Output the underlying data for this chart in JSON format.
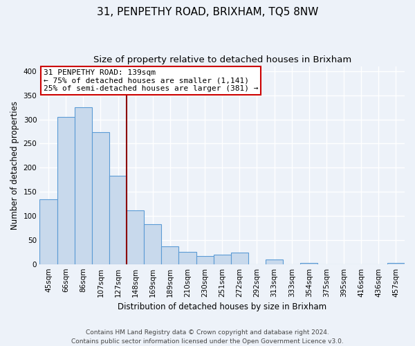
{
  "title": "31, PENPETHY ROAD, BRIXHAM, TQ5 8NW",
  "subtitle": "Size of property relative to detached houses in Brixham",
  "xlabel": "Distribution of detached houses by size in Brixham",
  "ylabel": "Number of detached properties",
  "categories": [
    "45sqm",
    "66sqm",
    "86sqm",
    "107sqm",
    "127sqm",
    "148sqm",
    "169sqm",
    "189sqm",
    "210sqm",
    "230sqm",
    "251sqm",
    "272sqm",
    "292sqm",
    "313sqm",
    "333sqm",
    "354sqm",
    "375sqm",
    "395sqm",
    "416sqm",
    "436sqm",
    "457sqm"
  ],
  "values": [
    135,
    305,
    325,
    273,
    183,
    112,
    83,
    37,
    26,
    17,
    21,
    25,
    0,
    10,
    0,
    4,
    0,
    1,
    0,
    0,
    3
  ],
  "bar_color": "#c8d9ec",
  "bar_edge_color": "#5b9bd5",
  "vline_x": 4.5,
  "vline_color": "#8b0000",
  "annotation_text": "31 PENPETHY ROAD: 139sqm\n← 75% of detached houses are smaller (1,141)\n25% of semi-detached houses are larger (381) →",
  "annotation_box_color": "white",
  "annotation_box_edge_color": "#cc0000",
  "ylim": [
    0,
    410
  ],
  "yticks": [
    0,
    50,
    100,
    150,
    200,
    250,
    300,
    350,
    400
  ],
  "footer_line1": "Contains HM Land Registry data © Crown copyright and database right 2024.",
  "footer_line2": "Contains public sector information licensed under the Open Government Licence v3.0.",
  "bg_color": "#edf2f9",
  "grid_color": "white",
  "title_fontsize": 11,
  "subtitle_fontsize": 9.5,
  "label_fontsize": 8.5,
  "tick_fontsize": 7.5,
  "annotation_fontsize": 8,
  "footer_fontsize": 6.5
}
